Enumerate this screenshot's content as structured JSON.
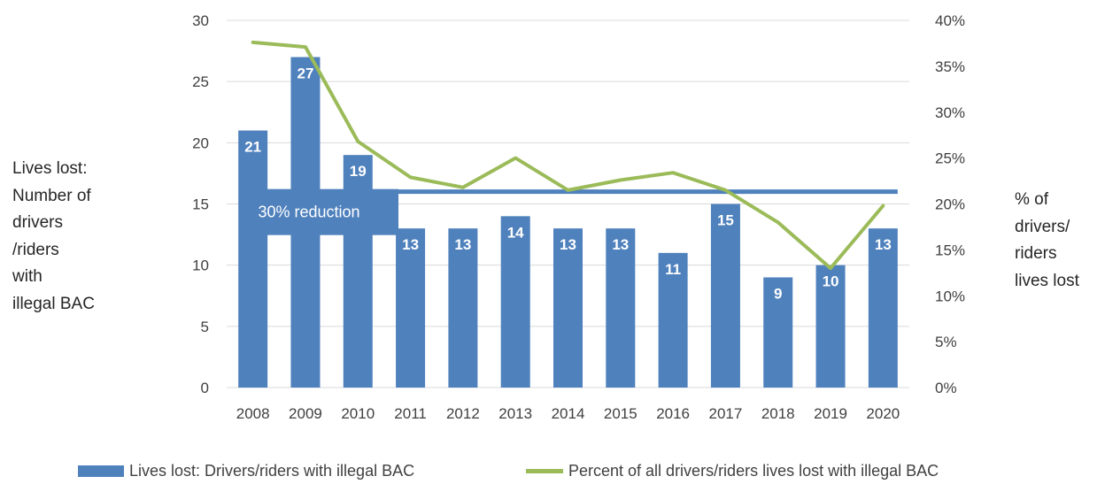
{
  "chart_data": {
    "type": "bar",
    "categories": [
      "2008",
      "2009",
      "2010",
      "2011",
      "2012",
      "2013",
      "2014",
      "2015",
      "2016",
      "2017",
      "2018",
      "2019",
      "2020"
    ],
    "series": [
      {
        "name": "Lives lost: Drivers/riders with illegal BAC",
        "type": "bar",
        "axis": "left",
        "color": "#4f81bd",
        "values": [
          21,
          27,
          19,
          13,
          13,
          14,
          13,
          13,
          11,
          15,
          9,
          10,
          13
        ],
        "data_labels": [
          "21",
          "27",
          "19",
          "13",
          "13",
          "14",
          "13",
          "13",
          "11",
          "15",
          "9",
          "10",
          "13"
        ]
      },
      {
        "name": "Percent of all drivers/riders lives lost with illegal BAC",
        "type": "line",
        "axis": "right",
        "color": "#9bbb59",
        "values": [
          37.6,
          37.1,
          26.8,
          22.9,
          21.8,
          25.0,
          21.5,
          22.6,
          23.4,
          21.5,
          18.0,
          13.0,
          19.8
        ]
      }
    ],
    "y_left": {
      "label": "Lives lost: Number of drivers /riders with illegal BAC",
      "label_lines": [
        "Lives lost:",
        "Number of",
        "drivers",
        "/riders",
        "with",
        "illegal BAC"
      ],
      "lim": [
        0,
        30
      ],
      "ticks": [
        "0",
        "5",
        "10",
        "15",
        "20",
        "25",
        "30"
      ]
    },
    "y_right": {
      "label": "% of drivers/ riders lives lost",
      "label_lines": [
        "% of",
        "drivers/",
        "riders",
        "lives lost"
      ],
      "lim": [
        0,
        40
      ],
      "ticks": [
        "0%",
        "5%",
        "10%",
        "15%",
        "20%",
        "25%",
        "30%",
        "35%",
        "40%"
      ]
    },
    "annotation": {
      "text": "30% reduction",
      "reference_value": 16,
      "reference_from": "2011",
      "reference_to": "2020",
      "color": "#4f81bd"
    },
    "grid": true,
    "legend": "bottom"
  }
}
